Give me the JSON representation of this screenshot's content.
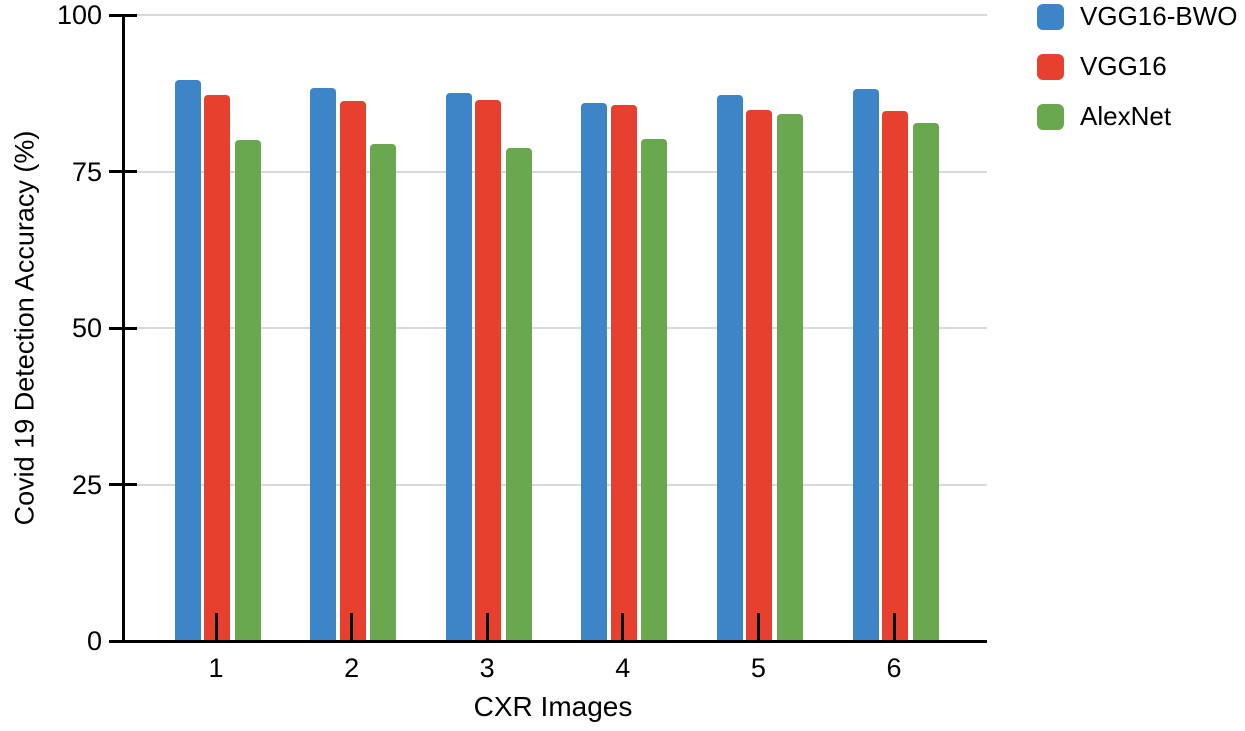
{
  "chart_data": {
    "type": "bar",
    "title": "",
    "xlabel": "CXR Images",
    "ylabel": "Covid 19 Detection Accuracy (%)",
    "categories": [
      "1",
      "2",
      "3",
      "4",
      "5",
      "6"
    ],
    "y_ticks": [
      0,
      25,
      50,
      75,
      100
    ],
    "ylim": [
      0,
      100
    ],
    "grid": true,
    "legend_position": "top-right",
    "series": [
      {
        "name": "VGG16-BWO",
        "color": "#3d85c6",
        "values": [
          89.6,
          88.3,
          87.6,
          85.9,
          87.3,
          88.2
        ]
      },
      {
        "name": "VGG16",
        "color": "#e7402f",
        "values": [
          87.2,
          86.2,
          86.5,
          85.6,
          84.9,
          84.7
        ]
      },
      {
        "name": "AlexNet",
        "color": "#6aa84f",
        "values": [
          80.0,
          79.4,
          78.7,
          80.2,
          84.2,
          82.7
        ]
      }
    ],
    "colors": {
      "gridline": "#d9d9d9",
      "axis": "#000000",
      "text": "#000000",
      "background": "#ffffff"
    }
  }
}
